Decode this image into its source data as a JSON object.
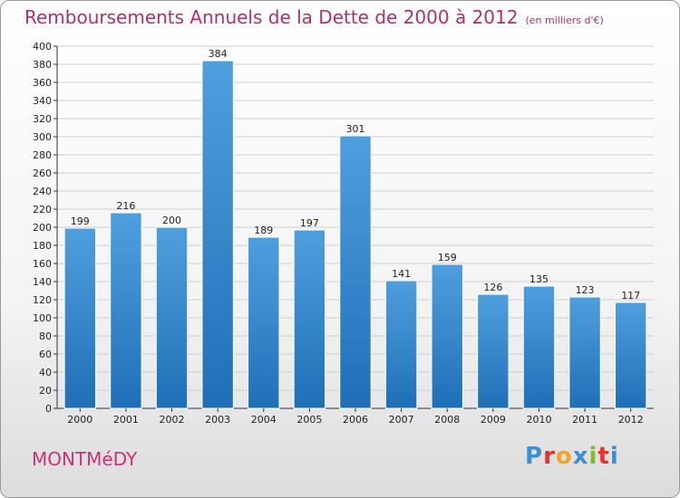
{
  "header": {
    "title": "Remboursements Annuels de la Dette de 2000 à 2012",
    "subtitle": "(en milliers d'€)"
  },
  "footer": {
    "city": "MONTMéDY",
    "logo_text": "Proxiti",
    "logo_colors": [
      "#3a8fd6",
      "#e8322a",
      "#f2a51f",
      "#3a8fd6",
      "#7bbf2a",
      "#e8322a",
      "#3a8fd6"
    ]
  },
  "colors": {
    "bar": "#4f9fdf",
    "bar_dark": "#1f6fb7",
    "grid": "#cfcfcf"
  },
  "chart_data": {
    "type": "bar",
    "title": "Remboursements Annuels de la Dette de 2000 à 2012",
    "subtitle": "(en milliers d'€)",
    "xlabel": "",
    "ylabel": "",
    "categories": [
      "2000",
      "2001",
      "2002",
      "2003",
      "2004",
      "2005",
      "2006",
      "2007",
      "2008",
      "2009",
      "2010",
      "2011",
      "2012"
    ],
    "values": [
      199,
      216,
      200,
      384,
      189,
      197,
      301,
      141,
      159,
      126,
      135,
      123,
      117
    ],
    "ylim": [
      0,
      400
    ],
    "yticks": [
      0,
      20,
      40,
      60,
      80,
      100,
      120,
      140,
      160,
      180,
      200,
      220,
      240,
      260,
      280,
      300,
      320,
      340,
      360,
      380,
      400
    ],
    "grid": true,
    "legend": "none"
  }
}
